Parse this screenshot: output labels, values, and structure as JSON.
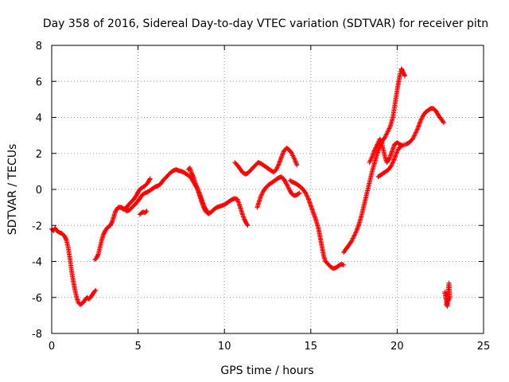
{
  "chart_data": {
    "type": "scatter",
    "title": "Day 358 of 2016, Sidereal Day-to-day VTEC variation (SDTVAR) for receiver pitn",
    "xlabel": "GPS time / hours",
    "ylabel": "SDTVAR / TECUs",
    "xlim": [
      0,
      25
    ],
    "ylim": [
      -8,
      8
    ],
    "x_ticks": [
      0,
      5,
      10,
      15,
      20,
      25
    ],
    "y_ticks": [
      -8,
      -6,
      -4,
      -2,
      0,
      2,
      4,
      6,
      8
    ],
    "x_tick_labels": [
      "0",
      "5",
      "10",
      "15",
      "20",
      "25"
    ],
    "y_tick_labels": [
      "-8",
      "-6",
      "-4",
      "-2",
      "0",
      "2",
      "4",
      "6",
      "8"
    ],
    "grid": true,
    "marker": "plus",
    "color": "#ff0000",
    "series": [
      {
        "values_segments": [
          [
            [
              0.0,
              -2.2
            ],
            [
              0.1,
              -2.3
            ],
            [
              0.2,
              -2.15
            ],
            [
              0.3,
              -2.3
            ],
            [
              0.45,
              -2.4
            ],
            [
              0.6,
              -2.45
            ],
            [
              0.75,
              -2.6
            ],
            [
              0.85,
              -2.8
            ],
            [
              0.95,
              -3.2
            ],
            [
              1.05,
              -3.8
            ],
            [
              1.15,
              -4.5
            ],
            [
              1.25,
              -5.1
            ],
            [
              1.35,
              -5.6
            ],
            [
              1.45,
              -6.0
            ],
            [
              1.55,
              -6.3
            ],
            [
              1.65,
              -6.4
            ],
            [
              1.75,
              -6.35
            ],
            [
              1.85,
              -6.25
            ],
            [
              1.95,
              -6.1
            ],
            [
              2.05,
              -6.0
            ],
            [
              2.15,
              -6.1
            ],
            [
              2.25,
              -6.0
            ],
            [
              2.35,
              -5.85
            ],
            [
              2.45,
              -5.7
            ],
            [
              2.55,
              -5.6
            ]
          ],
          [
            [
              2.5,
              -3.9
            ],
            [
              2.6,
              -3.8
            ],
            [
              2.7,
              -3.6
            ],
            [
              2.8,
              -3.2
            ],
            [
              2.9,
              -2.8
            ],
            [
              3.0,
              -2.5
            ],
            [
              3.1,
              -2.3
            ],
            [
              3.25,
              -2.1
            ],
            [
              3.4,
              -2.0
            ],
            [
              3.5,
              -1.8
            ],
            [
              3.6,
              -1.5
            ],
            [
              3.7,
              -1.2
            ],
            [
              3.85,
              -1.0
            ],
            [
              4.0,
              -1.0
            ],
            [
              4.15,
              -1.1
            ],
            [
              4.3,
              -1.05
            ],
            [
              4.45,
              -0.85
            ],
            [
              4.6,
              -0.7
            ],
            [
              4.75,
              -0.55
            ],
            [
              4.9,
              -0.35
            ],
            [
              5.0,
              -0.15
            ],
            [
              5.1,
              0.0
            ],
            [
              5.25,
              0.1
            ],
            [
              5.4,
              0.2
            ],
            [
              5.55,
              0.35
            ],
            [
              5.7,
              0.6
            ]
          ],
          [
            [
              3.9,
              -1.0
            ],
            [
              4.05,
              -1.0
            ],
            [
              4.2,
              -1.1
            ],
            [
              4.35,
              -1.2
            ],
            [
              4.5,
              -1.15
            ],
            [
              4.65,
              -1.0
            ],
            [
              4.8,
              -0.85
            ],
            [
              4.95,
              -0.7
            ],
            [
              5.1,
              -0.5
            ],
            [
              5.25,
              -0.3
            ],
            [
              5.4,
              -0.2
            ],
            [
              5.55,
              -0.15
            ],
            [
              5.7,
              -0.05
            ],
            [
              5.85,
              0.05
            ],
            [
              6.0,
              0.15
            ],
            [
              6.15,
              0.2
            ],
            [
              6.3,
              0.3
            ],
            [
              6.45,
              0.5
            ],
            [
              6.6,
              0.65
            ],
            [
              6.75,
              0.8
            ],
            [
              6.9,
              0.95
            ],
            [
              7.05,
              1.05
            ],
            [
              7.2,
              1.1
            ],
            [
              7.35,
              1.05
            ],
            [
              7.5,
              1.0
            ],
            [
              7.65,
              0.95
            ],
            [
              7.8,
              0.85
            ],
            [
              7.95,
              0.75
            ],
            [
              8.1,
              0.6
            ],
            [
              8.25,
              0.35
            ],
            [
              8.4,
              0.1
            ],
            [
              8.5,
              -0.15
            ],
            [
              8.6,
              -0.45
            ],
            [
              8.7,
              -0.75
            ],
            [
              8.8,
              -1.0
            ],
            [
              8.9,
              -1.2
            ],
            [
              9.0,
              -1.3
            ],
            [
              9.1,
              -1.35
            ],
            [
              9.25,
              -1.25
            ],
            [
              9.4,
              -1.1
            ],
            [
              9.55,
              -1.0
            ],
            [
              9.7,
              -0.95
            ],
            [
              9.85,
              -0.9
            ],
            [
              10.0,
              -0.85
            ],
            [
              10.15,
              -0.75
            ],
            [
              10.3,
              -0.65
            ],
            [
              10.45,
              -0.55
            ],
            [
              10.6,
              -0.5
            ],
            [
              10.75,
              -0.55
            ],
            [
              10.85,
              -0.8
            ],
            [
              10.95,
              -1.1
            ],
            [
              11.05,
              -1.4
            ],
            [
              11.15,
              -1.65
            ],
            [
              11.25,
              -1.85
            ],
            [
              11.35,
              -2.0
            ]
          ],
          [
            [
              5.1,
              -1.4
            ],
            [
              5.2,
              -1.3
            ],
            [
              5.3,
              -1.25
            ],
            [
              5.4,
              -1.3
            ],
            [
              5.5,
              -1.2
            ]
          ],
          [
            [
              7.9,
              1.1
            ],
            [
              8.0,
              1.2
            ],
            [
              8.1,
              0.9
            ],
            [
              8.2,
              0.7
            ],
            [
              8.3,
              0.4
            ],
            [
              8.4,
              0.15
            ],
            [
              8.55,
              -0.2
            ],
            [
              8.7,
              -0.6
            ],
            [
              8.85,
              -1.0
            ],
            [
              9.0,
              -1.2
            ]
          ],
          [
            [
              10.6,
              1.5
            ],
            [
              10.75,
              1.35
            ],
            [
              10.9,
              1.15
            ],
            [
              11.05,
              0.95
            ],
            [
              11.2,
              0.85
            ],
            [
              11.35,
              0.9
            ],
            [
              11.5,
              1.05
            ],
            [
              11.65,
              1.2
            ],
            [
              11.8,
              1.35
            ],
            [
              11.95,
              1.5
            ],
            [
              12.1,
              1.45
            ],
            [
              12.25,
              1.35
            ],
            [
              12.4,
              1.25
            ],
            [
              12.55,
              1.15
            ],
            [
              12.7,
              1.05
            ],
            [
              12.85,
              0.95
            ],
            [
              13.0,
              1.1
            ],
            [
              13.15,
              1.4
            ],
            [
              13.3,
              1.8
            ],
            [
              13.45,
              2.15
            ],
            [
              13.6,
              2.3
            ],
            [
              13.75,
              2.2
            ],
            [
              13.9,
              2.0
            ],
            [
              14.05,
              1.7
            ],
            [
              14.2,
              1.35
            ]
          ],
          [
            [
              11.9,
              -1.0
            ],
            [
              12.0,
              -0.7
            ],
            [
              12.1,
              -0.4
            ],
            [
              12.25,
              -0.1
            ],
            [
              12.4,
              0.1
            ],
            [
              12.55,
              0.25
            ],
            [
              12.7,
              0.35
            ],
            [
              12.85,
              0.45
            ],
            [
              13.0,
              0.55
            ],
            [
              13.15,
              0.65
            ],
            [
              13.3,
              0.7
            ],
            [
              13.45,
              0.55
            ],
            [
              13.6,
              0.3
            ],
            [
              13.75,
              0.0
            ],
            [
              13.9,
              -0.25
            ],
            [
              14.05,
              -0.35
            ],
            [
              14.2,
              -0.3
            ],
            [
              14.35,
              -0.2
            ]
          ],
          [
            [
              13.8,
              0.5
            ],
            [
              13.95,
              0.4
            ],
            [
              14.1,
              0.35
            ],
            [
              14.25,
              0.25
            ],
            [
              14.4,
              0.15
            ],
            [
              14.55,
              0.0
            ],
            [
              14.7,
              -0.2
            ],
            [
              14.85,
              -0.5
            ],
            [
              15.0,
              -0.9
            ],
            [
              15.15,
              -1.3
            ],
            [
              15.3,
              -1.7
            ],
            [
              15.45,
              -2.2
            ],
            [
              15.55,
              -2.7
            ],
            [
              15.65,
              -3.2
            ],
            [
              15.75,
              -3.7
            ],
            [
              15.85,
              -4.0
            ],
            [
              16.0,
              -4.15
            ],
            [
              16.15,
              -4.3
            ],
            [
              16.3,
              -4.4
            ],
            [
              16.45,
              -4.35
            ],
            [
              16.6,
              -4.25
            ],
            [
              16.75,
              -4.15
            ],
            [
              16.9,
              -4.2
            ]
          ],
          [
            [
              16.9,
              -3.5
            ],
            [
              17.05,
              -3.3
            ],
            [
              17.2,
              -3.1
            ],
            [
              17.35,
              -2.9
            ],
            [
              17.5,
              -2.6
            ],
            [
              17.65,
              -2.3
            ],
            [
              17.8,
              -1.9
            ],
            [
              17.95,
              -1.4
            ],
            [
              18.1,
              -0.8
            ],
            [
              18.25,
              -0.2
            ],
            [
              18.4,
              0.4
            ],
            [
              18.55,
              1.0
            ],
            [
              18.7,
              1.5
            ],
            [
              18.85,
              2.0
            ],
            [
              19.0,
              2.4
            ],
            [
              19.15,
              2.7
            ],
            [
              19.3,
              2.9
            ],
            [
              19.45,
              3.2
            ],
            [
              19.6,
              3.5
            ],
            [
              19.75,
              4.0
            ],
            [
              19.85,
              4.6
            ],
            [
              19.95,
              5.2
            ],
            [
              20.05,
              5.8
            ],
            [
              20.15,
              6.3
            ],
            [
              20.25,
              6.7
            ],
            [
              20.35,
              6.5
            ],
            [
              20.45,
              6.3
            ]
          ],
          [
            [
              18.4,
              1.5
            ],
            [
              18.55,
              1.8
            ],
            [
              18.7,
              2.2
            ],
            [
              18.85,
              2.5
            ],
            [
              19.0,
              2.8
            ],
            [
              19.1,
              2.6
            ],
            [
              19.2,
              2.2
            ],
            [
              19.3,
              1.8
            ],
            [
              19.4,
              1.5
            ],
            [
              19.55,
              1.7
            ],
            [
              19.7,
              2.1
            ],
            [
              19.85,
              2.5
            ],
            [
              20.0,
              2.6
            ],
            [
              20.15,
              2.5
            ],
            [
              20.3,
              2.45
            ],
            [
              20.5,
              2.5
            ],
            [
              20.7,
              2.6
            ],
            [
              20.9,
              2.8
            ],
            [
              21.05,
              3.1
            ],
            [
              21.2,
              3.4
            ],
            [
              21.35,
              3.8
            ],
            [
              21.5,
              4.1
            ],
            [
              21.65,
              4.3
            ],
            [
              21.8,
              4.4
            ],
            [
              21.95,
              4.5
            ],
            [
              22.1,
              4.5
            ],
            [
              22.25,
              4.35
            ],
            [
              22.4,
              4.1
            ],
            [
              22.55,
              3.9
            ],
            [
              22.7,
              3.7
            ]
          ],
          [
            [
              18.9,
              0.7
            ],
            [
              19.05,
              0.8
            ],
            [
              19.2,
              0.9
            ],
            [
              19.35,
              1.0
            ],
            [
              19.5,
              1.1
            ],
            [
              19.65,
              1.3
            ],
            [
              19.8,
              1.6
            ],
            [
              19.95,
              2.0
            ],
            [
              20.1,
              2.3
            ],
            [
              20.25,
              2.4
            ]
          ],
          [
            [
              22.75,
              -5.7
            ],
            [
              22.8,
              -5.9
            ],
            [
              22.85,
              -6.2
            ],
            [
              22.9,
              -6.5
            ],
            [
              22.95,
              -5.6
            ],
            [
              23.0,
              -5.2
            ],
            [
              23.05,
              -6.0
            ],
            [
              22.85,
              -6.4
            ]
          ]
        ]
      }
    ]
  }
}
